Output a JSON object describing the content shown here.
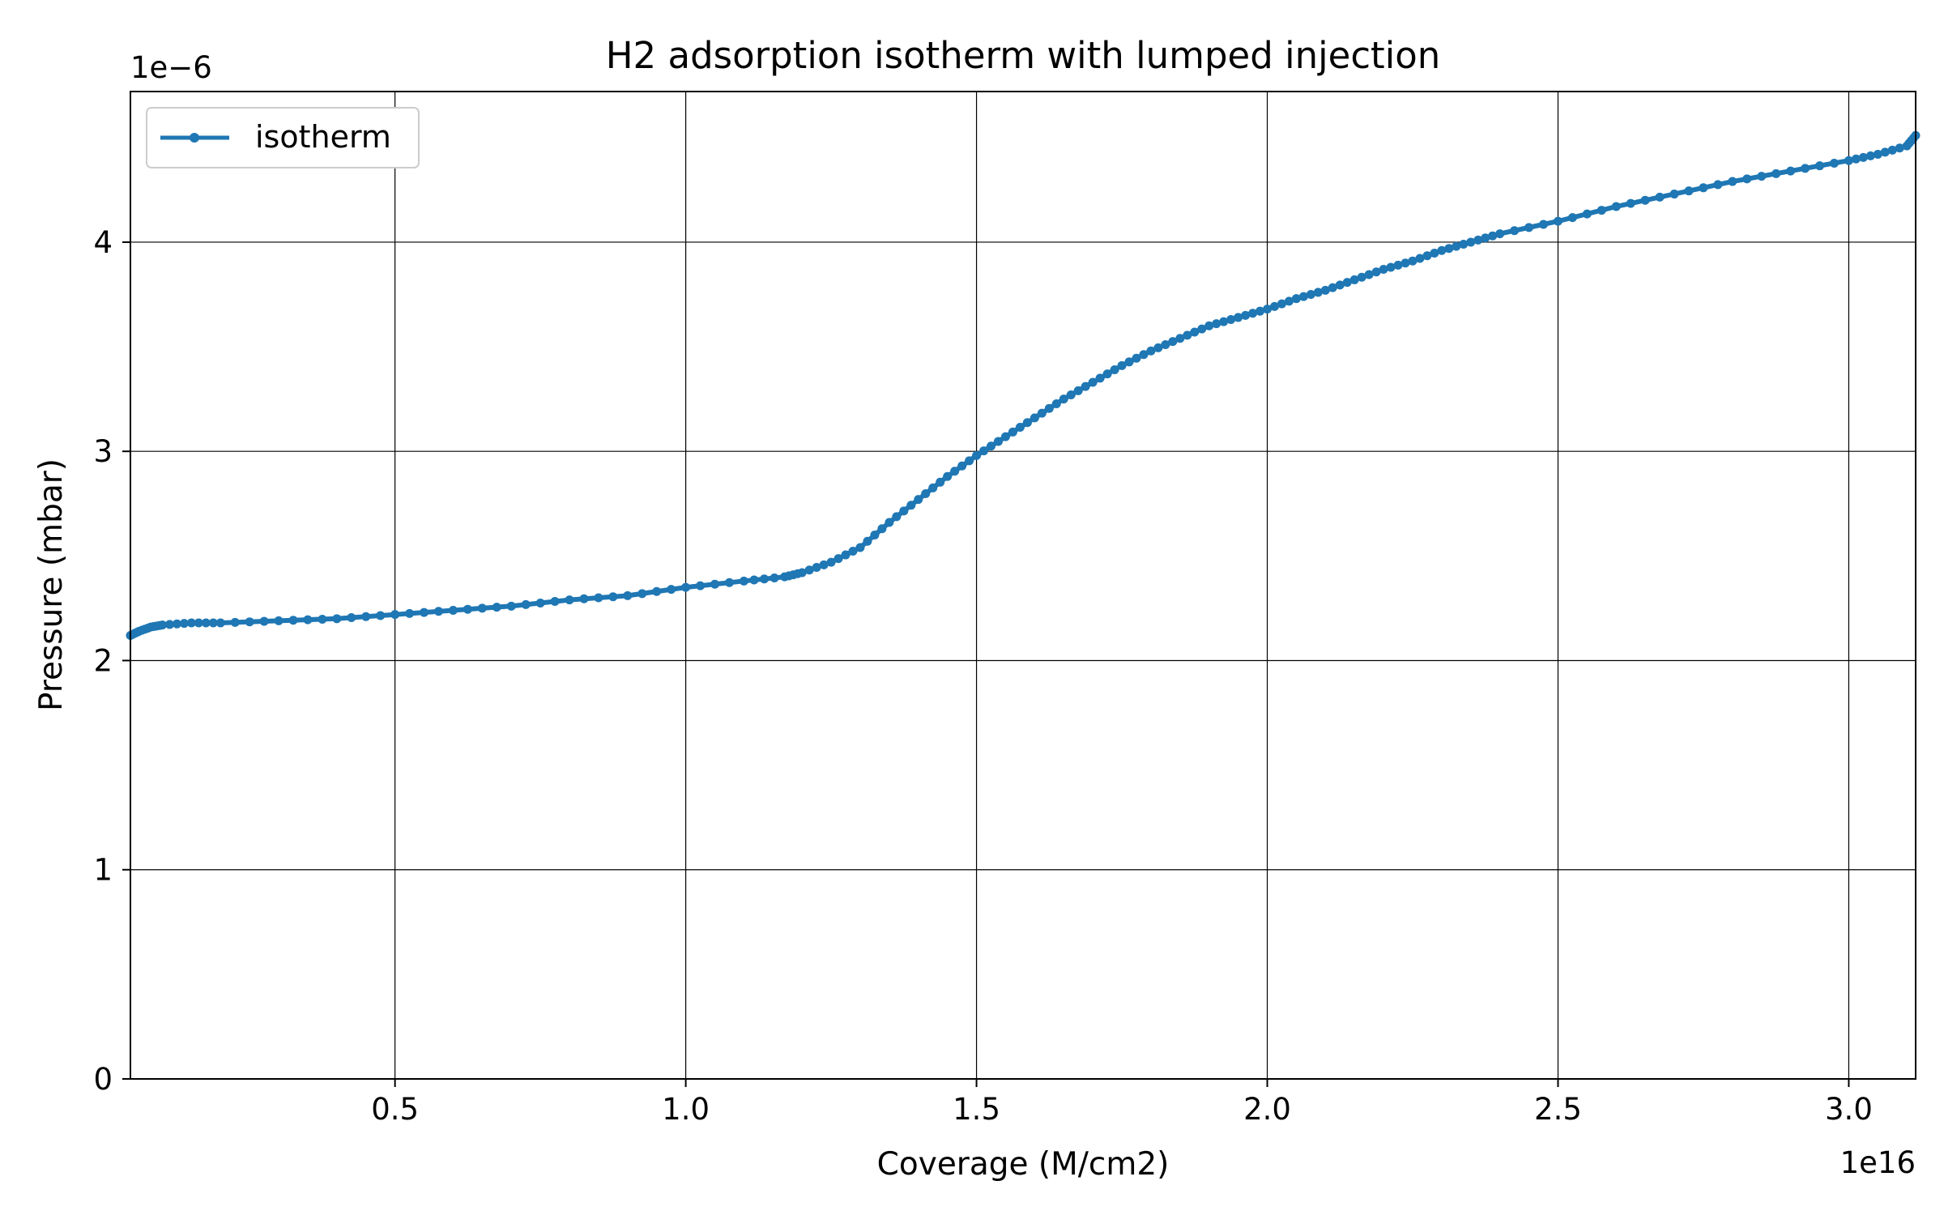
{
  "chart_data": {
    "type": "line",
    "title": "H2 adsorption isotherm with lumped injection",
    "xlabel": "Coverage (M/cm2)",
    "ylabel": "Pressure (mbar)",
    "x_scale_label": "1e16",
    "y_scale_label": "1e−6",
    "xlim": [
      0.045,
      3.115
    ],
    "ylim": [
      0,
      4.72
    ],
    "x_ticks": [
      {
        "value": 0.5,
        "label": "0.5"
      },
      {
        "value": 1.0,
        "label": "1.0"
      },
      {
        "value": 1.5,
        "label": "1.5"
      },
      {
        "value": 2.0,
        "label": "2.0"
      },
      {
        "value": 2.5,
        "label": "2.5"
      },
      {
        "value": 3.0,
        "label": "3.0"
      }
    ],
    "y_ticks": [
      {
        "value": 0,
        "label": "0"
      },
      {
        "value": 1,
        "label": "1"
      },
      {
        "value": 2,
        "label": "2"
      },
      {
        "value": 3,
        "label": "3"
      },
      {
        "value": 4,
        "label": "4"
      }
    ],
    "grid": true,
    "legend_position": "top-left",
    "colors": {
      "series": "#1f77b4"
    },
    "series": [
      {
        "name": "isotherm",
        "marker": "dot",
        "points": [
          [
            0.045,
            2.12
          ],
          [
            0.06,
            2.14
          ],
          [
            0.08,
            2.16
          ],
          [
            0.1,
            2.17
          ],
          [
            0.15,
            2.18
          ],
          [
            0.2,
            2.18
          ],
          [
            0.3,
            2.19
          ],
          [
            0.4,
            2.2
          ],
          [
            0.5,
            2.22
          ],
          [
            0.6,
            2.24
          ],
          [
            0.7,
            2.26
          ],
          [
            0.8,
            2.29
          ],
          [
            0.9,
            2.31
          ],
          [
            1.0,
            2.35
          ],
          [
            1.1,
            2.38
          ],
          [
            1.17,
            2.4
          ],
          [
            1.2,
            2.42
          ],
          [
            1.25,
            2.47
          ],
          [
            1.3,
            2.54
          ],
          [
            1.35,
            2.66
          ],
          [
            1.4,
            2.77
          ],
          [
            1.45,
            2.88
          ],
          [
            1.5,
            2.98
          ],
          [
            1.55,
            3.07
          ],
          [
            1.6,
            3.16
          ],
          [
            1.65,
            3.25
          ],
          [
            1.7,
            3.33
          ],
          [
            1.75,
            3.41
          ],
          [
            1.8,
            3.48
          ],
          [
            1.85,
            3.54
          ],
          [
            1.9,
            3.6
          ],
          [
            1.95,
            3.64
          ],
          [
            2.0,
            3.68
          ],
          [
            2.05,
            3.73
          ],
          [
            2.1,
            3.77
          ],
          [
            2.15,
            3.82
          ],
          [
            2.2,
            3.87
          ],
          [
            2.25,
            3.91
          ],
          [
            2.3,
            3.96
          ],
          [
            2.35,
            4.0
          ],
          [
            2.4,
            4.04
          ],
          [
            2.5,
            4.1
          ],
          [
            2.6,
            4.17
          ],
          [
            2.7,
            4.23
          ],
          [
            2.8,
            4.29
          ],
          [
            2.9,
            4.34
          ],
          [
            3.0,
            4.39
          ],
          [
            3.05,
            4.42
          ],
          [
            3.1,
            4.46
          ],
          [
            3.115,
            4.51
          ]
        ]
      }
    ]
  }
}
